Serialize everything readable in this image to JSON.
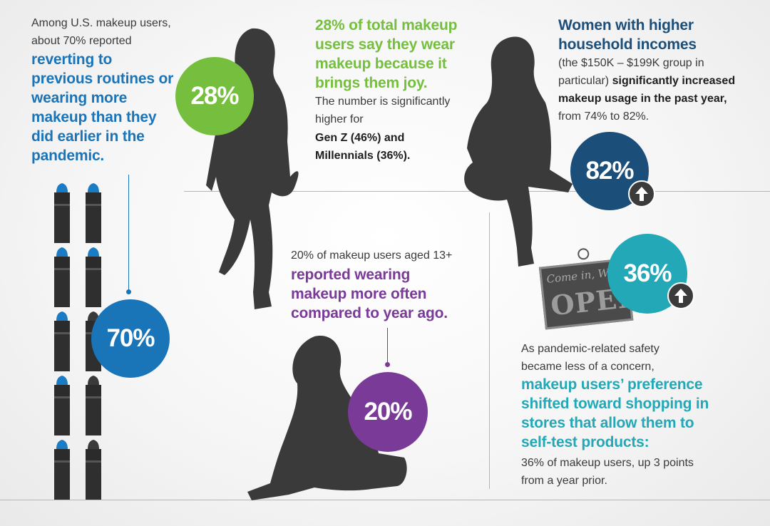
{
  "colors": {
    "blue": "#1a74b8",
    "green": "#76bf3e",
    "navy": "#1b4f7a",
    "purple": "#7a3a98",
    "teal": "#22a8b6",
    "dark": "#3b3b3b"
  },
  "block_70": {
    "intro": "Among U.S. makeup users, about 70% reported",
    "highlight": "reverting to previous routines or wearing more makeup than they did earlier in the pandemic.",
    "stat": "70%"
  },
  "block_28": {
    "highlight": "28% of total makeup users say they wear makeup because it brings them joy.",
    "body": "The number is significantly higher for",
    "bold": "Gen Z (46%) and Millennials (36%).",
    "stat": "28%"
  },
  "block_82": {
    "highlight": "Women with higher household incomes",
    "body_1": "(the $150K – $199K group in particular)",
    "bold": "significantly increased makeup usage in the past year,",
    "body_2": "from 74% to 82%.",
    "stat": "82%",
    "icon": "arrow-up-icon"
  },
  "block_20": {
    "intro": "20% of makeup users aged 13+",
    "highlight": "reported wearing makeup more often compared to year ago.",
    "stat": "20%"
  },
  "block_36": {
    "intro": "As pandemic-related safety became less of a concern,",
    "highlight": "makeup users’ preference shifted toward shopping in stores that allow them to self-test products:",
    "body": "36% of makeup users, up 3 points from a year prior.",
    "stat": "36%",
    "icon": "arrow-up-icon",
    "sign_line1": "Come in, We",
    "sign_line2": "OPEN"
  }
}
